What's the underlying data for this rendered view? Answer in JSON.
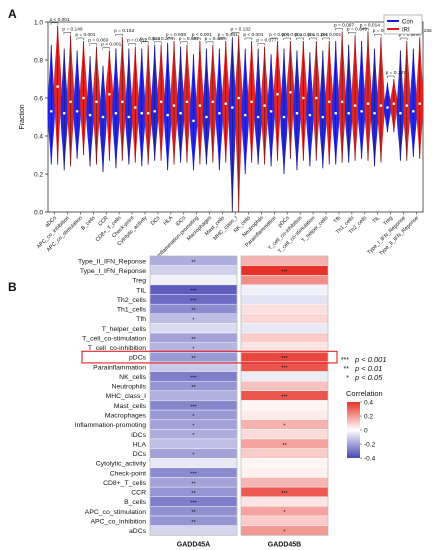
{
  "chart_data": [
    {
      "panel_label": "A",
      "type": "violin",
      "ylabel": "Fraction",
      "ylim": [
        0,
        1.0
      ],
      "yticks": [
        "0.0",
        "0.2",
        "0.4",
        "0.6",
        "0.8",
        "1.0"
      ],
      "legend": {
        "placement": "top-right",
        "entries": [
          {
            "name": "Con",
            "color": "#1a1ae6"
          },
          {
            "name": "IRI",
            "color": "#e01a1a"
          }
        ]
      },
      "categories": [
        "aDCs",
        "APC_co_inhibition",
        "APC_co_stimulation",
        "B_cells",
        "CCR",
        "CD8+_T_cells",
        "Check-point",
        "Cytolytic_activity",
        "DCs",
        "HLA",
        "iDCs",
        "Inflammation-promoting",
        "Macrophages",
        "Mast_cells",
        "MHC_class_I",
        "NK_cells",
        "Neutrophils",
        "Parainflammation",
        "pDCs",
        "T_cell_co-inhibition",
        "T_cell_co-stimulation",
        "T_helper_cells",
        "Tfh",
        "Th1_cells",
        "Th2_cells",
        "TIL",
        "Treg",
        "Type_I_IFN_Reponse",
        "Type_II_IFN_Reponse"
      ],
      "pvalues": [
        "p < 0.001",
        "p = 0.149",
        "p = 0.001",
        "p = 0.060",
        "p < 0.001",
        "p = 0.162",
        "p = 0.012",
        "p = 0.818",
        "p = 0.274",
        "p = 0.938",
        "p = 0.992",
        "p < 0.001",
        "p = 0.480",
        "p = 0.481",
        "p = 0.132",
        "p < 0.001",
        "p = 0.077",
        "p < 0.001",
        "p < 0.001",
        "p = 0.001",
        "p = 0.281",
        "p < 0.001",
        "p = 0.097",
        "p = 0.649",
        "p = 0.014",
        "p = 0.949",
        "p = 0.137",
        "p = 0.978",
        "p = 0.155"
      ],
      "series": [
        {
          "name": "Con",
          "color": "#1a1ae6",
          "median": [
            0.53,
            0.52,
            0.53,
            0.51,
            0.5,
            0.52,
            0.5,
            0.52,
            0.53,
            0.51,
            0.52,
            0.48,
            0.5,
            0.52,
            0.55,
            0.51,
            0.5,
            0.53,
            0.5,
            0.52,
            0.51,
            0.5,
            0.52,
            0.52,
            0.53,
            0.52,
            0.55,
            0.52,
            0.53
          ],
          "min": [
            0.25,
            0.22,
            0.28,
            0.24,
            0.21,
            0.23,
            0.25,
            0.24,
            0.27,
            0.22,
            0.26,
            0.22,
            0.25,
            0.22,
            0.0,
            0.2,
            0.25,
            0.24,
            0.2,
            0.22,
            0.24,
            0.23,
            0.25,
            0.26,
            0.28,
            0.24,
            0.42,
            0.27,
            0.29
          ],
          "max": [
            0.88,
            0.86,
            0.85,
            0.82,
            0.77,
            0.86,
            0.86,
            0.86,
            0.88,
            0.89,
            0.87,
            0.83,
            0.86,
            0.86,
            0.92,
            0.86,
            0.86,
            0.83,
            0.86,
            0.85,
            0.84,
            0.85,
            0.9,
            0.88,
            0.9,
            0.86,
            0.68,
            0.85,
            0.86
          ]
        },
        {
          "name": "IRI",
          "color": "#e01a1a",
          "median": [
            0.66,
            0.58,
            0.6,
            0.58,
            0.62,
            0.58,
            0.55,
            0.52,
            0.58,
            0.56,
            0.58,
            0.56,
            0.58,
            0.57,
            0.6,
            0.58,
            0.56,
            0.62,
            0.63,
            0.6,
            0.6,
            0.58,
            0.58,
            0.56,
            0.57,
            0.56,
            0.57,
            0.56,
            0.57
          ],
          "min": [
            0.25,
            0.24,
            0.3,
            0.25,
            0.27,
            0.27,
            0.26,
            0.25,
            0.27,
            0.25,
            0.26,
            0.25,
            0.26,
            0.26,
            0.0,
            0.26,
            0.25,
            0.27,
            0.28,
            0.27,
            0.27,
            0.25,
            0.26,
            0.27,
            0.27,
            0.26,
            0.42,
            0.27,
            0.28
          ],
          "max": [
            0.98,
            0.93,
            0.9,
            0.87,
            0.85,
            0.92,
            0.87,
            0.88,
            0.88,
            0.9,
            0.88,
            0.9,
            0.88,
            0.9,
            0.93,
            0.9,
            0.87,
            0.9,
            0.9,
            0.9,
            0.9,
            0.9,
            0.95,
            0.93,
            0.95,
            0.92,
            0.7,
            0.9,
            0.92
          ]
        }
      ]
    },
    {
      "panel_label": "B",
      "type": "heatmap",
      "rows": [
        "Type_II_IFN_Reponse",
        "Type_I_IFN_Reponse",
        "Treg",
        "TIL",
        "Th2_cells",
        "Th1_cells",
        "Tfh",
        "T_helper_cells",
        "T_cell_co-stimulation",
        "T_cell_co-inhibition",
        "pDCs",
        "Parainflammation",
        "NK_cells",
        "Neutrophils",
        "MHC_class_I",
        "Mast_cells",
        "Macrophages",
        "Inflammation-promoting",
        "iDCs",
        "HLA",
        "DCs",
        "Cytolytic_activity",
        "Check-point",
        "CD8+_T_cells",
        "CCR",
        "B_cells",
        "APC_co_stimulation",
        "APC_co_inhibition",
        "aDCs"
      ],
      "columns": [
        "GADD45A",
        "GADD45B"
      ],
      "values": [
        [
          -0.18,
          0.15
        ],
        [
          -0.1,
          0.42
        ],
        [
          -0.03,
          0.22
        ],
        [
          -0.35,
          -0.03
        ],
        [
          -0.32,
          -0.06
        ],
        [
          -0.25,
          0.06
        ],
        [
          -0.14,
          0.08
        ],
        [
          -0.08,
          -0.05
        ],
        [
          -0.2,
          0.1
        ],
        [
          -0.16,
          0.05
        ],
        [
          -0.22,
          0.36
        ],
        [
          -0.12,
          0.33
        ],
        [
          -0.28,
          -0.04
        ],
        [
          -0.23,
          0.12
        ],
        [
          -0.17,
          0.33
        ],
        [
          -0.26,
          0.02
        ],
        [
          -0.22,
          0.04
        ],
        [
          -0.2,
          0.15
        ],
        [
          -0.18,
          0.07
        ],
        [
          -0.14,
          0.18
        ],
        [
          -0.2,
          0.1
        ],
        [
          -0.05,
          0.02
        ],
        [
          -0.25,
          0.03
        ],
        [
          -0.2,
          0.14
        ],
        [
          -0.23,
          0.32
        ],
        [
          -0.28,
          0.05
        ],
        [
          -0.24,
          0.18
        ],
        [
          -0.23,
          0.1
        ],
        [
          -0.09,
          0.2
        ]
      ],
      "stars": [
        [
          "**",
          ""
        ],
        [
          "",
          "***"
        ],
        [
          "",
          ""
        ],
        [
          "***",
          ""
        ],
        [
          "***",
          ""
        ],
        [
          "**",
          ""
        ],
        [
          "*",
          ""
        ],
        [
          "",
          ""
        ],
        [
          "**",
          ""
        ],
        [
          "*",
          ""
        ],
        [
          "**",
          "***"
        ],
        [
          "",
          "***"
        ],
        [
          "***",
          ""
        ],
        [
          "**",
          ""
        ],
        [
          "",
          "***"
        ],
        [
          "***",
          ""
        ],
        [
          "*",
          ""
        ],
        [
          "*",
          "*"
        ],
        [
          "*",
          ""
        ],
        [
          "",
          "**"
        ],
        [
          "*",
          ""
        ],
        [
          "",
          ""
        ],
        [
          "***",
          ""
        ],
        [
          "**",
          ""
        ],
        [
          "**",
          "***"
        ],
        [
          "***",
          ""
        ],
        [
          "**",
          "*"
        ],
        [
          "**",
          ""
        ],
        [
          "",
          "*"
        ]
      ],
      "highlight_row": "pDCs",
      "significance_legend": [
        {
          "stars": "***",
          "text": "p < 0.001"
        },
        {
          "stars": "**",
          "text": "p < 0.01"
        },
        {
          "stars": "*",
          "text": "p < 0.05"
        }
      ],
      "colorbar": {
        "title": "Correlation",
        "range": [
          -0.4,
          0.4
        ],
        "ticks": [
          "0.4",
          "0.2",
          "0",
          "-0.2",
          "-0.4"
        ],
        "low_color": "#4646b4",
        "mid_color": "#ffffff",
        "high_color": "#e63228"
      }
    }
  ]
}
